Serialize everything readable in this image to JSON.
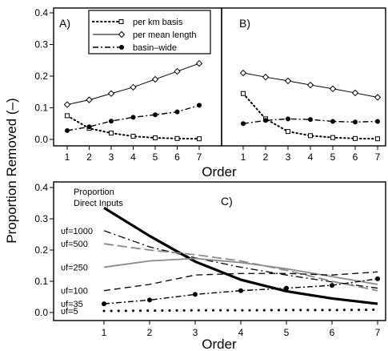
{
  "ylabel": "Proportion Removed (–)",
  "chart_data": [
    {
      "type": "line",
      "panel": "A)",
      "xlabel": "Order",
      "x": [
        1,
        2,
        3,
        4,
        5,
        6,
        7
      ],
      "xticks": [
        "1",
        "2",
        "3",
        "4",
        "5",
        "6",
        "7"
      ],
      "ylim": [
        0,
        0.4
      ],
      "yticks": [
        "0.0",
        "0.1",
        "0.2",
        "0.3",
        "0.4"
      ],
      "legend": {
        "placement": "top-left"
      },
      "series": [
        {
          "name": "per km basis",
          "style": "dotted-square",
          "values": [
            0.075,
            0.035,
            0.02,
            0.01,
            0.005,
            0.003,
            0.002
          ]
        },
        {
          "name": "per mean length",
          "style": "solid-diamond",
          "values": [
            0.11,
            0.125,
            0.145,
            0.165,
            0.19,
            0.215,
            0.24
          ]
        },
        {
          "name": "basin–wide",
          "style": "dashdot-dot",
          "values": [
            0.028,
            0.04,
            0.058,
            0.07,
            0.078,
            0.087,
            0.108
          ]
        }
      ]
    },
    {
      "type": "line",
      "panel": "B)",
      "xlabel": "Order",
      "x": [
        1,
        2,
        3,
        4,
        5,
        6,
        7
      ],
      "xticks": [
        "1",
        "2",
        "3",
        "4",
        "5",
        "6",
        "7"
      ],
      "ylim": [
        0,
        0.4
      ],
      "series": [
        {
          "name": "per km basis",
          "style": "dotted-square",
          "values": [
            0.145,
            0.065,
            0.025,
            0.012,
            0.006,
            0.003,
            0.002
          ]
        },
        {
          "name": "per mean length",
          "style": "solid-diamond",
          "values": [
            0.21,
            0.197,
            0.185,
            0.172,
            0.16,
            0.147,
            0.133
          ]
        },
        {
          "name": "basin–wide",
          "style": "dashdot-dot",
          "values": [
            0.05,
            0.06,
            0.065,
            0.063,
            0.057,
            0.055,
            0.057
          ]
        }
      ]
    },
    {
      "type": "line",
      "panel": "C)",
      "xlabel": "Order",
      "x": [
        1,
        2,
        3,
        4,
        5,
        6,
        7
      ],
      "xticks": [
        "1",
        "2",
        "3",
        "4",
        "5",
        "6",
        "7"
      ],
      "ylim": [
        0,
        0.4
      ],
      "yticks": [
        "0.0",
        "0.1",
        "0.2",
        "0.3",
        "0.4"
      ],
      "annotation": [
        "Proportion",
        "Direct Inputs"
      ],
      "series": [
        {
          "name": "Proportion Direct Inputs",
          "style": "thick-solid",
          "values": [
            0.335,
            0.245,
            0.163,
            0.105,
            0.068,
            0.045,
            0.028
          ]
        },
        {
          "name": "υf=1000",
          "style": "dashdot-black",
          "values": [
            0.262,
            0.21,
            0.175,
            0.145,
            0.12,
            0.098,
            0.078
          ]
        },
        {
          "name": "υf=500",
          "style": "longdash-gray",
          "values": [
            0.22,
            0.2,
            0.185,
            0.165,
            0.135,
            0.1,
            0.07
          ]
        },
        {
          "name": "υf=250",
          "style": "solid-gray",
          "values": [
            0.145,
            0.165,
            0.173,
            0.16,
            0.14,
            0.115,
            0.09
          ]
        },
        {
          "name": "υf=100",
          "style": "dash-black",
          "values": [
            0.07,
            0.09,
            0.12,
            0.125,
            0.125,
            0.12,
            0.13
          ]
        },
        {
          "name": "υf=35",
          "style": "dashdot-dot",
          "values": [
            0.028,
            0.04,
            0.058,
            0.07,
            0.078,
            0.087,
            0.108
          ]
        },
        {
          "name": "υf=5",
          "style": "dotted-bold",
          "values": [
            0.005,
            0.006,
            0.007,
            0.007,
            0.008,
            0.008,
            0.009
          ]
        }
      ]
    }
  ]
}
